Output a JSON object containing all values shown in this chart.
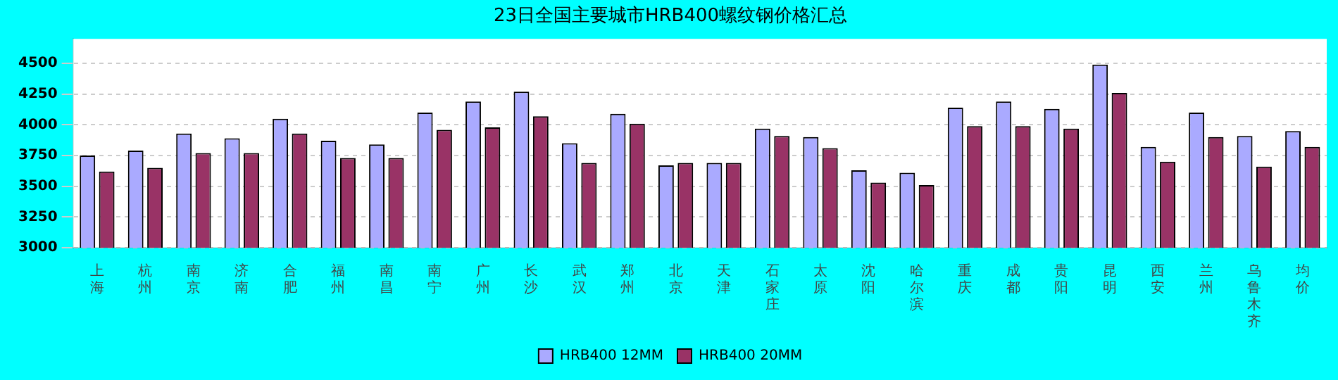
{
  "chart_data": {
    "type": "bar",
    "title": "23日全国主要城市HRB400螺纹钢价格汇总",
    "categories": [
      "上海",
      "杭州",
      "南京",
      "济南",
      "合肥",
      "福州",
      "南昌",
      "南宁",
      "广州",
      "长沙",
      "武汉",
      "郑州",
      "北京",
      "天津",
      "石家庄",
      "太原",
      "沈阳",
      "哈尔滨",
      "重庆",
      "成都",
      "贵阳",
      "昆明",
      "西安",
      "兰州",
      "乌鲁木齐",
      "均价"
    ],
    "series": [
      {
        "name": "HRB400 12MM",
        "color": "#aaaaff",
        "values": [
          3750,
          3790,
          3930,
          3890,
          4050,
          3870,
          3840,
          4100,
          4190,
          4270,
          3850,
          4090,
          3670,
          3690,
          3970,
          3900,
          3630,
          3610,
          4140,
          4190,
          4130,
          4490,
          3820,
          4100,
          3910,
          3950
        ]
      },
      {
        "name": "HRB400 20MM",
        "color": "#993366",
        "values": [
          3620,
          3650,
          3770,
          3770,
          3930,
          3730,
          3730,
          3960,
          3980,
          4070,
          3690,
          4010,
          3690,
          3690,
          3910,
          3810,
          3530,
          3510,
          3990,
          3990,
          3970,
          4260,
          3700,
          3900,
          3660,
          3820
        ]
      }
    ],
    "ylim": [
      3000,
      4700
    ],
    "yticks": [
      3000,
      3250,
      3500,
      3750,
      4000,
      4250,
      4500
    ],
    "grid": "y",
    "legend": "bottom"
  }
}
